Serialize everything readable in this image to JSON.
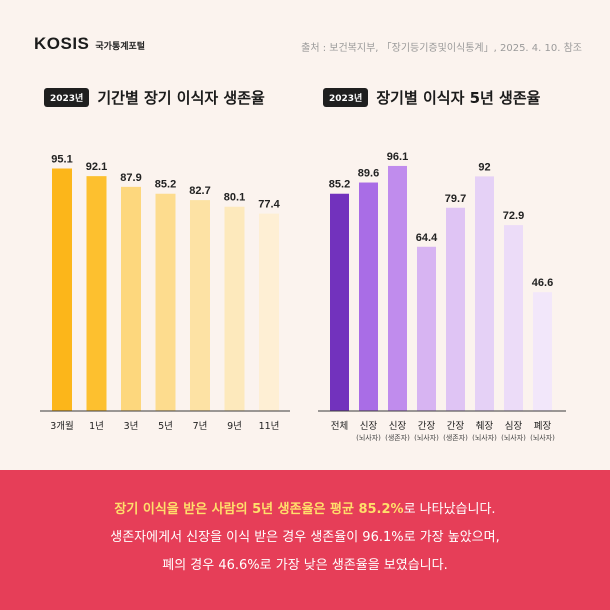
{
  "header": {
    "logo": "KOSIS",
    "logo_sub": "국가통계포털",
    "source": "출처 : 보건복지부, 「장기등기증및이식통계」, 2025. 4. 10. 참조"
  },
  "colors": {
    "background": "#fbf3ee",
    "footer_bg": "#e63e58",
    "highlight": "#ffdf6b",
    "left_bars": [
      "#fcb61a",
      "#fdc02f",
      "#fdd77d",
      "#fddc8e",
      "#fde2a4",
      "#fde9bc",
      "#feefd4"
    ],
    "right_bars": [
      "#7232bd",
      "#a96de6",
      "#c08ced",
      "#d7b4f2",
      "#dfc4f4",
      "#e5d1f6",
      "#ecdcf8",
      "#f2e7fa"
    ]
  },
  "chart_data": [
    {
      "type": "bar",
      "badge": "2023년",
      "title": "기간별 장기 이식자 생존율",
      "categories": [
        "3개월",
        "1년",
        "3년",
        "5년",
        "7년",
        "9년",
        "11년"
      ],
      "values": [
        95.1,
        92.1,
        87.9,
        85.2,
        82.7,
        80.1,
        77.4
      ],
      "ylim": [
        0,
        100
      ],
      "grid": false,
      "legend": "none"
    },
    {
      "type": "bar",
      "badge": "2023년",
      "title": "장기별 이식자 5년 생존율",
      "categories": [
        "전체",
        "신장",
        "신장",
        "간장",
        "간장",
        "췌장",
        "심장",
        "폐장"
      ],
      "sublabels": [
        "",
        "(뇌사자)",
        "(생존자)",
        "(뇌사자)",
        "(생존자)",
        "(뇌사자)",
        "(뇌사자)",
        "(뇌사자)"
      ],
      "values": [
        85.2,
        89.6,
        96.1,
        64.4,
        79.7,
        92.0,
        72.9,
        46.6
      ],
      "ylim": [
        0,
        100
      ],
      "grid": false,
      "legend": "none"
    }
  ],
  "footer": {
    "line1_highlight": "장기 이식을 받은 사람의 5년 생존율은 평균 85.2%",
    "line1_rest": "로 나타났습니다.",
    "line2": "생존자에게서 신장을 이식 받은 경우 생존율이 96.1%로 가장 높았으며,",
    "line3": "폐의 경우 46.6%로 가장 낮은 생존율을 보였습니다."
  }
}
